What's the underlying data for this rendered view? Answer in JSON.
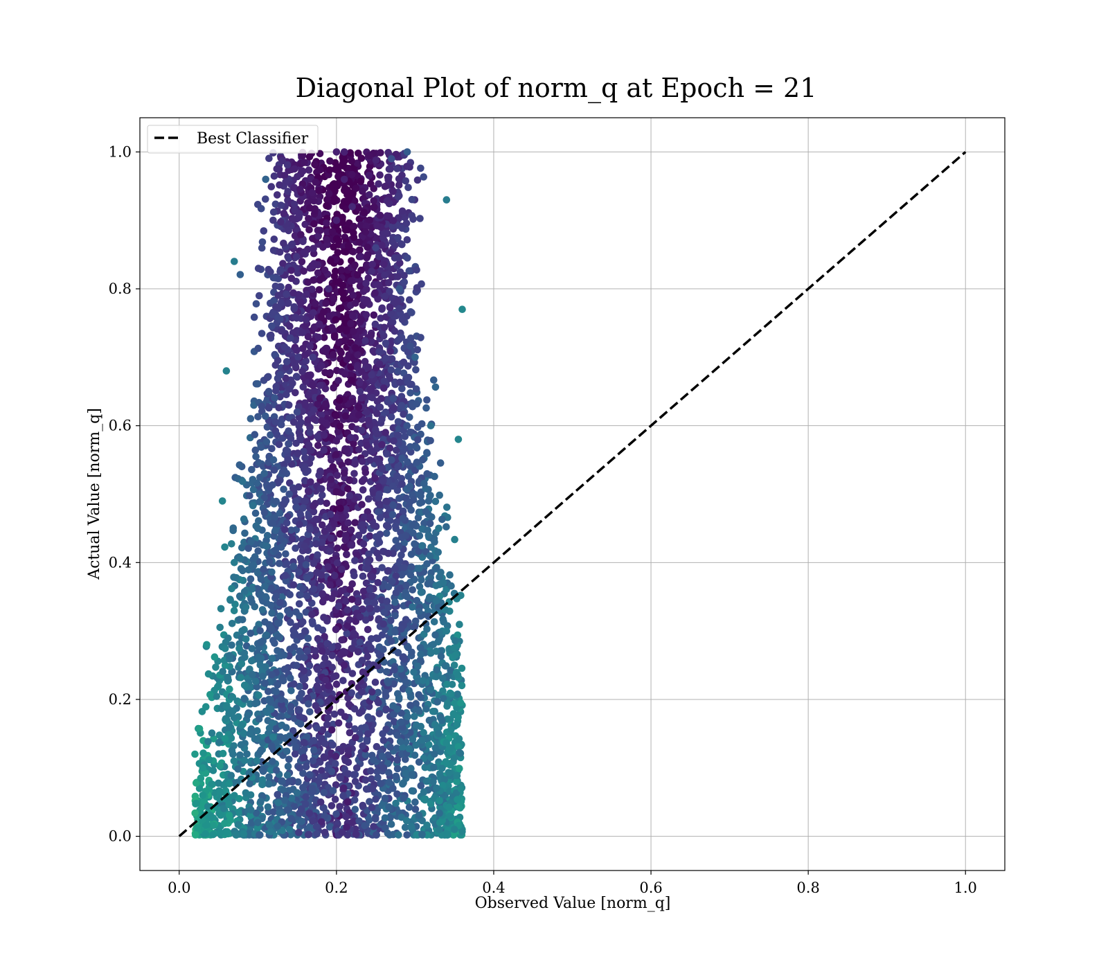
{
  "chart_data": {
    "type": "scatter",
    "title": "Diagonal Plot of norm_q at Epoch = 21",
    "xlabel": "Observed Value [norm_q]",
    "ylabel": "Actual Value [norm_q]",
    "xlim": [
      -0.05,
      1.05
    ],
    "ylim": [
      -0.05,
      1.05
    ],
    "xticks": [
      "0.0",
      "0.2",
      "0.4",
      "0.6",
      "0.8",
      "1.0"
    ],
    "yticks": [
      "0.0",
      "0.2",
      "0.4",
      "0.6",
      "0.8",
      "1.0"
    ],
    "grid": true,
    "legend": {
      "position": "top-left",
      "entries": [
        "Best Classifier"
      ]
    },
    "colormap": "viridis",
    "reference_line": {
      "name": "Best Classifier",
      "x": [
        0,
        1
      ],
      "y": [
        0,
        1
      ],
      "style": "dashed",
      "color": "#000000"
    },
    "series": [
      {
        "points": [
          [
            0.02,
            0.12
          ],
          [
            0.03,
            0.1
          ],
          [
            0.03,
            0.06
          ],
          [
            0.04,
            0.03
          ],
          [
            0.05,
            0.22
          ],
          [
            0.06,
            0.19
          ],
          [
            0.07,
            0.4
          ],
          [
            0.08,
            0.3
          ],
          [
            0.1,
            0.45
          ],
          [
            0.12,
            0.55
          ],
          [
            0.14,
            0.5
          ],
          [
            0.15,
            0.62
          ],
          [
            0.17,
            0.7
          ],
          [
            0.19,
            0.8
          ],
          [
            0.2,
            0.9
          ],
          [
            0.21,
            0.96
          ],
          [
            0.22,
            0.92
          ],
          [
            0.25,
            0.86
          ],
          [
            0.28,
            0.8
          ],
          [
            0.3,
            0.7
          ],
          [
            0.32,
            0.6
          ],
          [
            0.33,
            0.45
          ],
          [
            0.34,
            0.3
          ],
          [
            0.35,
            0.25
          ],
          [
            0.35,
            0.01
          ],
          [
            0.33,
            0.15
          ],
          [
            0.3,
            0.05
          ],
          [
            0.26,
            0.1
          ],
          [
            0.22,
            0.02
          ],
          [
            0.18,
            0.05
          ],
          [
            0.14,
            0.08
          ],
          [
            0.1,
            0.02
          ],
          [
            0.13,
            0.2
          ],
          [
            0.16,
            0.3
          ],
          [
            0.24,
            0.4
          ],
          [
            0.27,
            0.55
          ],
          [
            0.19,
            0.45
          ],
          [
            0.23,
            0.65
          ],
          [
            0.29,
            0.35
          ],
          [
            0.21,
            0.25
          ],
          [
            0.11,
            0.35
          ],
          [
            0.09,
            0.15
          ],
          [
            0.07,
            0.84
          ],
          [
            0.11,
            0.96
          ],
          [
            0.29,
            1.0
          ],
          [
            0.2,
            1.0
          ],
          [
            0.21,
            1.0
          ],
          [
            0.27,
            0.99
          ],
          [
            0.36,
            0.77
          ],
          [
            0.34,
            0.93
          ],
          [
            0.06,
            0.68
          ],
          [
            0.055,
            0.49
          ],
          [
            0.035,
            0.28
          ],
          [
            0.355,
            0.58
          ]
        ]
      }
    ],
    "scatter_generation": {
      "count": 4800,
      "seed": 21
    }
  }
}
